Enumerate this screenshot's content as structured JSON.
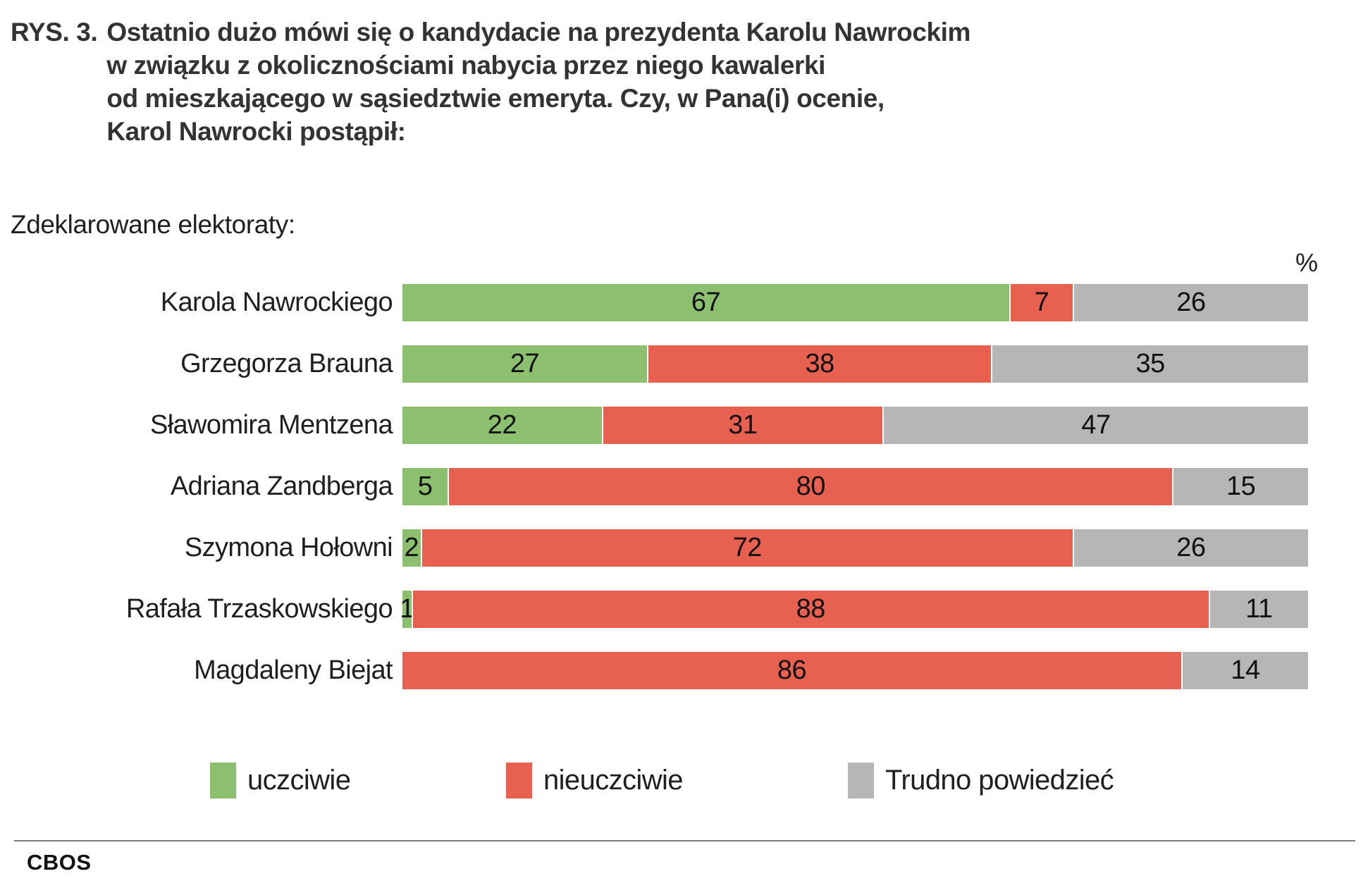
{
  "title": {
    "prefix": "RYS. 3.",
    "lines": [
      "Ostatnio dużo mówi się o kandydacie na prezydenta Karolu Nawrockim",
      "w związku z okolicznościami nabycia przez niego kawalerki",
      "od mieszkającego w sąsiedztwie emeryta. Czy, w Pana(i) ocenie,",
      "Karol Nawrocki postąpił:"
    ]
  },
  "subtitle": "Zdeklarowane elektoraty:",
  "percent_label": "%",
  "footer": {
    "brand": "CBOS"
  },
  "chart_data": {
    "type": "bar",
    "orientation": "horizontal-stacked",
    "title": "Ostatnio dużo mówi się o kandydacie na prezydenta Karolu Nawrockim w związku z okolicznościami nabycia przez niego kawalerki od mieszkającego w sąsiedztwie emeryta. Czy, w Pana(i) ocenie, Karol Nawrocki postąpił:",
    "group_label": "Zdeklarowane elektoraty:",
    "unit": "%",
    "xlim": [
      0,
      100
    ],
    "grid": false,
    "legend_position": "bottom",
    "categories": [
      "Karola Nawrockiego",
      "Grzegorza Brauna",
      "Sławomira Mentzena",
      "Adriana Zandberga",
      "Szymona Hołowni",
      "Rafała Trzaskowskiego",
      "Magdaleny Biejat"
    ],
    "series": [
      {
        "name": "uczciwie",
        "color": "#8CC06E",
        "values": [
          67,
          27,
          22,
          5,
          2,
          1,
          null
        ]
      },
      {
        "name": "nieuczciwie",
        "color": "#E8604F",
        "values": [
          7,
          38,
          31,
          80,
          72,
          88,
          86
        ]
      },
      {
        "name": "Trudno powiedzieć",
        "color": "#B6B6B6",
        "values": [
          26,
          35,
          47,
          15,
          26,
          11,
          14
        ]
      }
    ]
  }
}
